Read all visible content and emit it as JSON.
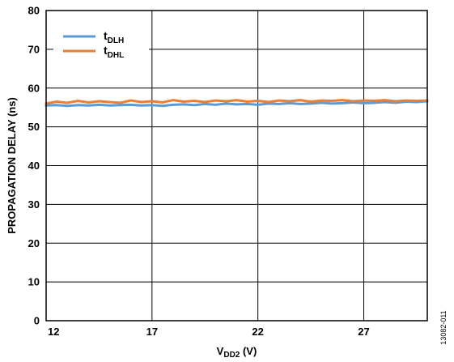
{
  "chart_data": {
    "type": "line",
    "title": "",
    "ylabel": "PROPAGATION DELAY (ns)",
    "xlabel": {
      "main": "V",
      "sub": "DD2",
      "suffix": " (V)"
    },
    "xlim": [
      12,
      30
    ],
    "ylim": [
      0,
      80
    ],
    "xticks": [
      12,
      17,
      22,
      27
    ],
    "yticks": [
      0,
      10,
      20,
      30,
      40,
      50,
      60,
      70,
      80
    ],
    "grid": true,
    "legend_position": "top-left",
    "figure_id": "13082-011",
    "series": [
      {
        "name": "t",
        "name_sub": "DLH",
        "color": "#5b9bd5",
        "x": [
          12,
          12.5,
          13,
          13.5,
          14,
          14.5,
          15,
          15.5,
          16,
          16.5,
          17,
          17.5,
          18,
          18.5,
          19,
          19.5,
          20,
          20.5,
          21,
          21.5,
          22,
          22.5,
          23,
          23.5,
          24,
          24.5,
          25,
          25.5,
          26,
          26.5,
          27,
          27.5,
          28,
          28.5,
          29,
          29.5,
          30
        ],
        "y": [
          55.5,
          55.6,
          55.4,
          55.6,
          55.5,
          55.7,
          55.5,
          55.6,
          55.7,
          55.5,
          55.6,
          55.4,
          55.7,
          55.8,
          55.6,
          55.9,
          55.7,
          56.0,
          55.8,
          55.9,
          55.7,
          56.0,
          55.9,
          56.1,
          55.9,
          56.0,
          56.2,
          56.0,
          56.1,
          56.3,
          56.1,
          56.2,
          56.4,
          56.2,
          56.5,
          56.4,
          56.6
        ]
      },
      {
        "name": "t",
        "name_sub": "DHL",
        "color": "#ed7d31",
        "x": [
          12,
          12.5,
          13,
          13.5,
          14,
          14.5,
          15,
          15.5,
          16,
          16.5,
          17,
          17.5,
          18,
          18.5,
          19,
          19.5,
          20,
          20.5,
          21,
          21.5,
          22,
          22.5,
          23,
          23.5,
          24,
          24.5,
          25,
          25.5,
          26,
          26.5,
          27,
          27.5,
          28,
          28.5,
          29,
          29.5,
          30
        ],
        "y": [
          56.0,
          56.5,
          56.2,
          56.7,
          56.3,
          56.6,
          56.4,
          56.2,
          56.8,
          56.4,
          56.6,
          56.3,
          56.9,
          56.5,
          56.7,
          56.4,
          56.8,
          56.6,
          56.9,
          56.5,
          56.7,
          56.4,
          56.8,
          56.6,
          56.9,
          56.5,
          56.8,
          56.7,
          56.9,
          56.6,
          56.8,
          56.7,
          56.9,
          56.6,
          56.8,
          56.7,
          56.8
        ]
      }
    ]
  }
}
